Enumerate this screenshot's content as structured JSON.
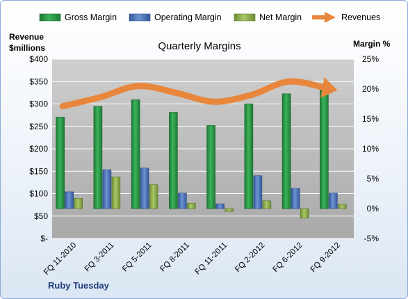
{
  "chart_data": {
    "type": "bar",
    "title": "Quarterly Margins",
    "left_axis_label": [
      "Revenue",
      "$millions"
    ],
    "right_axis_label": "Margin %",
    "footer": "Ruby Tuesday",
    "categories": [
      "FQ 11-2010",
      "FQ 3-2011",
      "FQ 5-2011",
      "FQ 8-2011",
      "FQ 11-2011",
      "FQ 2-2012",
      "FQ 6-2012",
      "FQ 9-2012"
    ],
    "left_axis": {
      "min": 0,
      "max": 400,
      "step": 50,
      "tick_labels": [
        "$-",
        "$50",
        "$100",
        "$150",
        "$200",
        "$250",
        "$300",
        "$350",
        "$400"
      ]
    },
    "right_axis": {
      "min": -5,
      "max": 25,
      "step": 5,
      "tick_labels": [
        "-5%",
        "0%",
        "5%",
        "10%",
        "15%",
        "20%",
        "25%"
      ]
    },
    "grid": true,
    "legend_position": "top",
    "series": [
      {
        "name": "Gross Margin",
        "kind": "bar",
        "axis": "right",
        "color": "#2e9a4a",
        "values": [
          15.3,
          17.1,
          18.2,
          16.1,
          13.9,
          17.5,
          19.2,
          20.0
        ]
      },
      {
        "name": "Operating Margin",
        "kind": "bar",
        "axis": "right",
        "color": "#4f78bd",
        "values": [
          2.8,
          6.5,
          6.8,
          2.6,
          0.8,
          5.5,
          3.4,
          2.6
        ]
      },
      {
        "name": "Net Margin",
        "kind": "bar",
        "axis": "right",
        "color": "#93b650",
        "values": [
          1.7,
          5.3,
          4.0,
          0.9,
          -0.5,
          1.3,
          -1.6,
          0.7
        ]
      },
      {
        "name": "Revenues",
        "kind": "line",
        "axis": "left",
        "color": "#e8873c",
        "values": [
          295,
          315,
          340,
          325,
          305,
          320,
          350,
          335
        ]
      }
    ],
    "colors": {
      "plot_background": "#bdbdbd",
      "gridline": "#ffffff",
      "axis_text": "#000000",
      "footer_text": "#1f3d7a"
    }
  }
}
